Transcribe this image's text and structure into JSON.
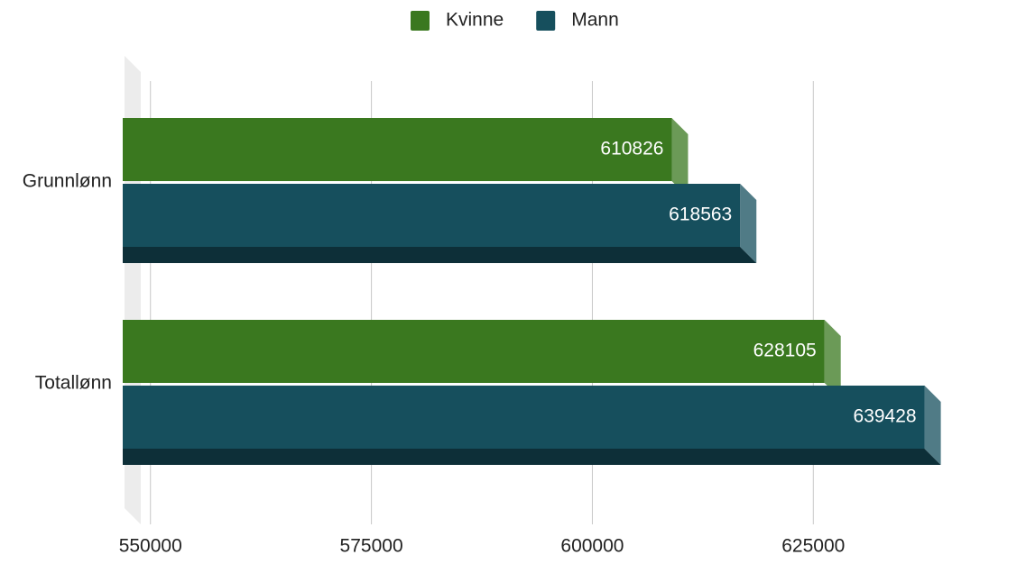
{
  "chart_data": {
    "type": "bar",
    "orientation": "horizontal",
    "categories": [
      "Grunnlønn",
      "Totallønn"
    ],
    "series": [
      {
        "name": "Kvinne",
        "color": "#3a781f",
        "values": [
          610826,
          628105
        ]
      },
      {
        "name": "Mann",
        "color": "#164f5d",
        "values": [
          618563,
          639428
        ]
      }
    ],
    "xlim": [
      548700,
      641000
    ],
    "xticks": [
      550000,
      575000,
      600000,
      625000
    ],
    "grid": true,
    "legend": "top",
    "data_labels": true
  }
}
